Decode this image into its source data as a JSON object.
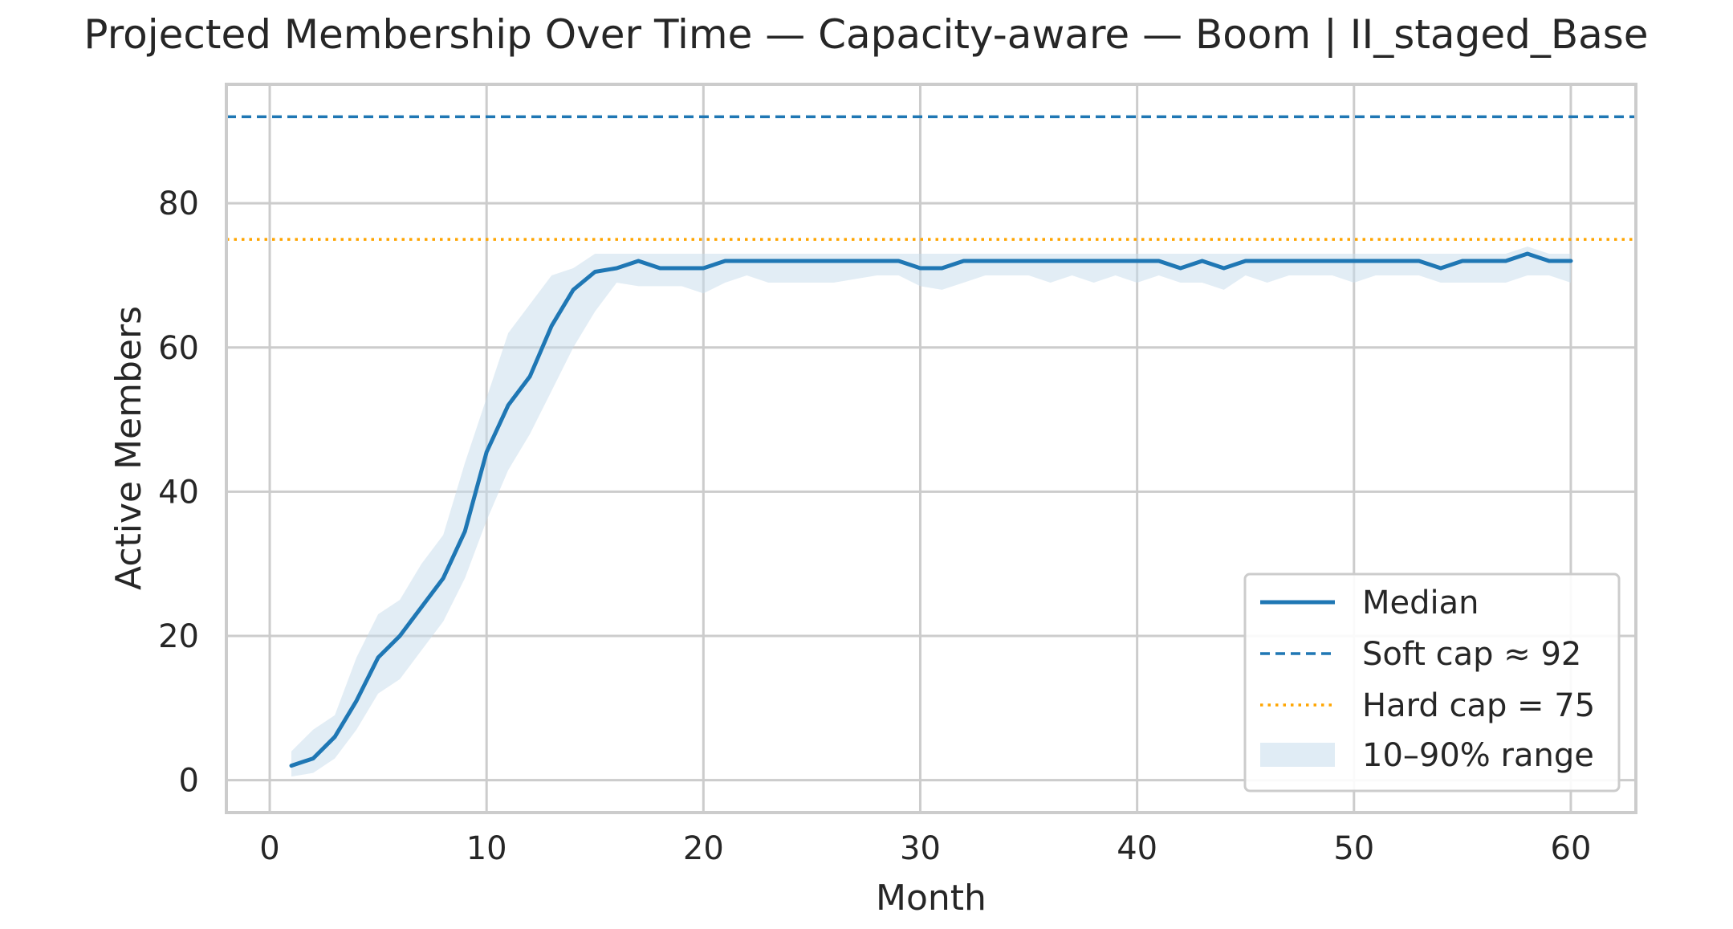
{
  "chart_data": {
    "type": "line",
    "title": "Projected Membership Over Time — Capacity-aware — Boom | II_staged_Base",
    "xlabel": "Month",
    "ylabel": "Active Members",
    "xlim": [
      -2,
      63
    ],
    "ylim": [
      -4.5,
      96.5
    ],
    "xticks": [
      0,
      10,
      20,
      30,
      40,
      50,
      60
    ],
    "yticks": [
      0,
      20,
      40,
      60,
      80
    ],
    "grid": true,
    "legend_position": "lower right",
    "colors": {
      "median": "#1f77b4",
      "soft_cap": "#1f77b4",
      "hard_cap": "#ffa500",
      "band": "#c6dcec"
    },
    "x": [
      1,
      2,
      3,
      4,
      5,
      6,
      7,
      8,
      9,
      10,
      11,
      12,
      13,
      14,
      15,
      16,
      17,
      18,
      19,
      20,
      21,
      22,
      23,
      24,
      25,
      26,
      27,
      28,
      29,
      30,
      31,
      32,
      33,
      34,
      35,
      36,
      37,
      38,
      39,
      40,
      41,
      42,
      43,
      44,
      45,
      46,
      47,
      48,
      49,
      50,
      51,
      52,
      53,
      54,
      55,
      56,
      57,
      58,
      59,
      60
    ],
    "series": [
      {
        "name": "Median",
        "values": [
          2,
          3,
          6,
          11,
          17,
          20,
          24,
          28,
          34.5,
          45.5,
          52,
          56,
          63,
          68,
          70.5,
          71,
          72,
          71,
          71,
          71,
          72,
          72,
          72,
          72,
          72,
          72,
          72,
          72,
          72,
          71,
          71,
          72,
          72,
          72,
          72,
          72,
          72,
          72,
          72,
          72,
          72,
          71,
          72,
          71,
          72,
          72,
          72,
          72,
          72,
          72,
          72,
          72,
          72,
          71,
          72,
          72,
          72,
          73,
          72,
          72
        ]
      },
      {
        "name": "10–90% range",
        "lower": [
          0.5,
          1,
          3,
          7,
          12,
          14,
          18,
          22,
          28,
          36,
          43,
          48,
          54,
          60,
          65,
          69,
          68.5,
          68.5,
          68.5,
          67.5,
          69,
          70,
          69,
          69,
          69,
          69,
          69.5,
          70,
          70,
          68.5,
          68,
          69,
          70,
          70,
          70,
          69,
          70,
          69,
          70,
          69,
          70,
          69,
          69,
          68,
          70,
          69,
          70,
          70,
          70,
          69,
          70,
          70,
          70,
          69,
          69,
          69,
          69,
          70,
          70,
          69
        ],
        "upper": [
          4,
          7,
          9,
          17,
          23,
          25,
          30,
          34,
          44,
          53,
          62,
          66,
          70,
          71,
          73,
          73,
          73,
          73,
          73,
          73,
          73,
          73,
          73,
          73,
          73,
          73,
          73,
          73,
          73,
          73,
          73,
          73,
          73,
          73,
          73,
          73,
          73,
          73,
          73,
          73,
          73,
          73,
          73,
          73,
          73,
          73,
          73,
          73,
          73,
          73,
          73,
          73,
          73,
          73,
          73,
          73,
          73,
          74,
          73,
          73
        ]
      }
    ],
    "reference_lines": [
      {
        "name": "Soft cap ≈ 92",
        "y": 92,
        "style": "dashed"
      },
      {
        "name": "Hard cap = 75",
        "y": 75,
        "style": "dotted"
      }
    ],
    "legend": [
      "Median",
      "Soft cap ≈ 92",
      "Hard cap = 75",
      "10–90% range"
    ]
  }
}
